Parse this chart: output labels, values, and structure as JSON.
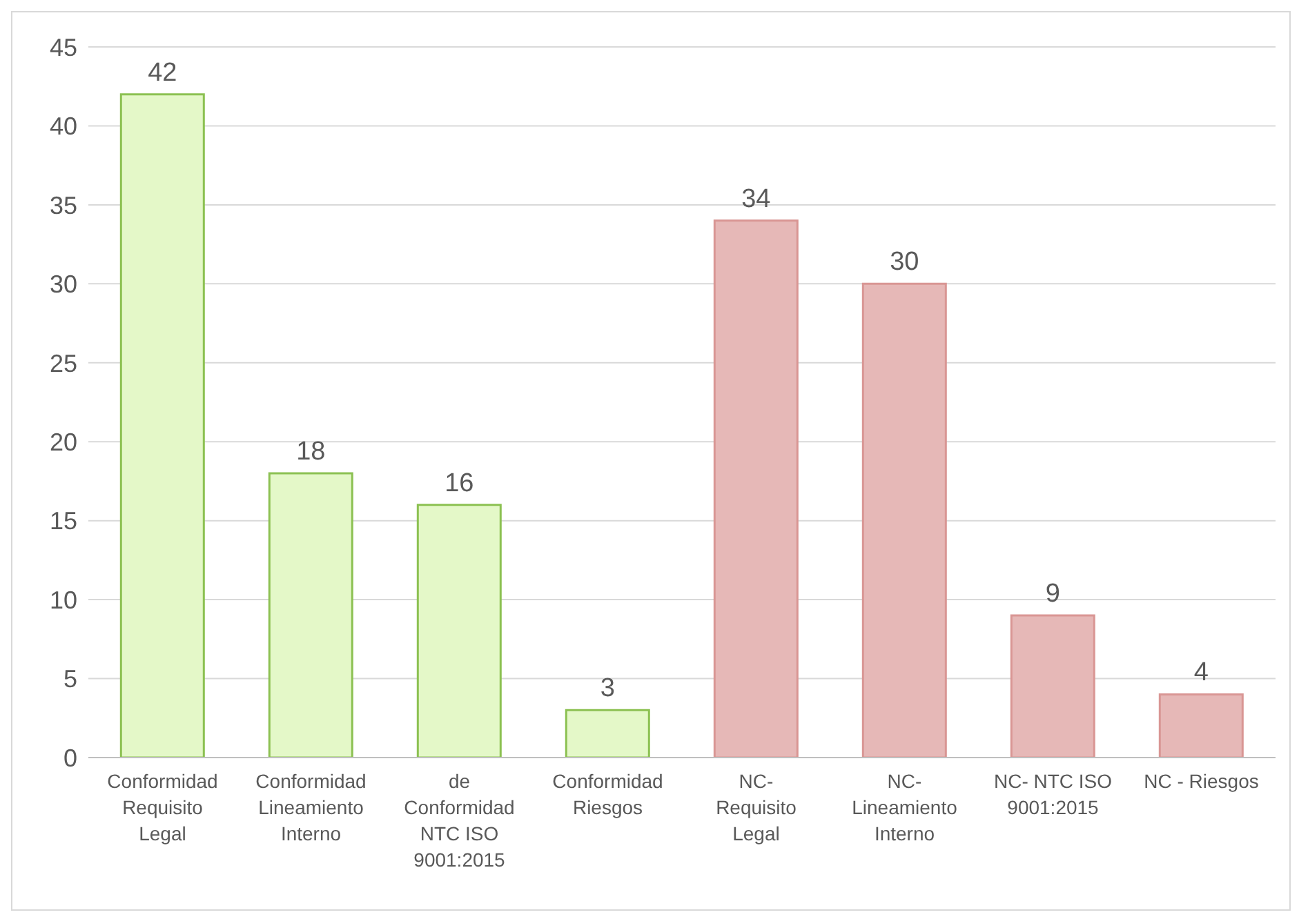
{
  "chart_data": {
    "type": "bar",
    "categories": [
      "Conformidad Requisito Legal",
      "Conformidad Lineamiento Interno",
      "de Conformidad NTC ISO 9001:2015",
      "Conformidad Riesgos",
      "NC- Requisito Legal",
      "NC- Lineamiento Interno",
      "NC- NTC ISO 9001:2015",
      "NC - Riesgos"
    ],
    "values": [
      42,
      18,
      16,
      3,
      34,
      30,
      9,
      4
    ],
    "colors": [
      "#e4f8c8",
      "#e4f8c8",
      "#e4f8c8",
      "#e4f8c8",
      "#e6b8b7",
      "#e6b8b7",
      "#e6b8b7",
      "#e6b8b7"
    ],
    "ylim": [
      0,
      45
    ],
    "yticks": [
      0,
      5,
      10,
      15,
      20,
      25,
      30,
      35,
      40,
      45
    ],
    "grid": "y",
    "data_labels": true,
    "legend": false
  }
}
